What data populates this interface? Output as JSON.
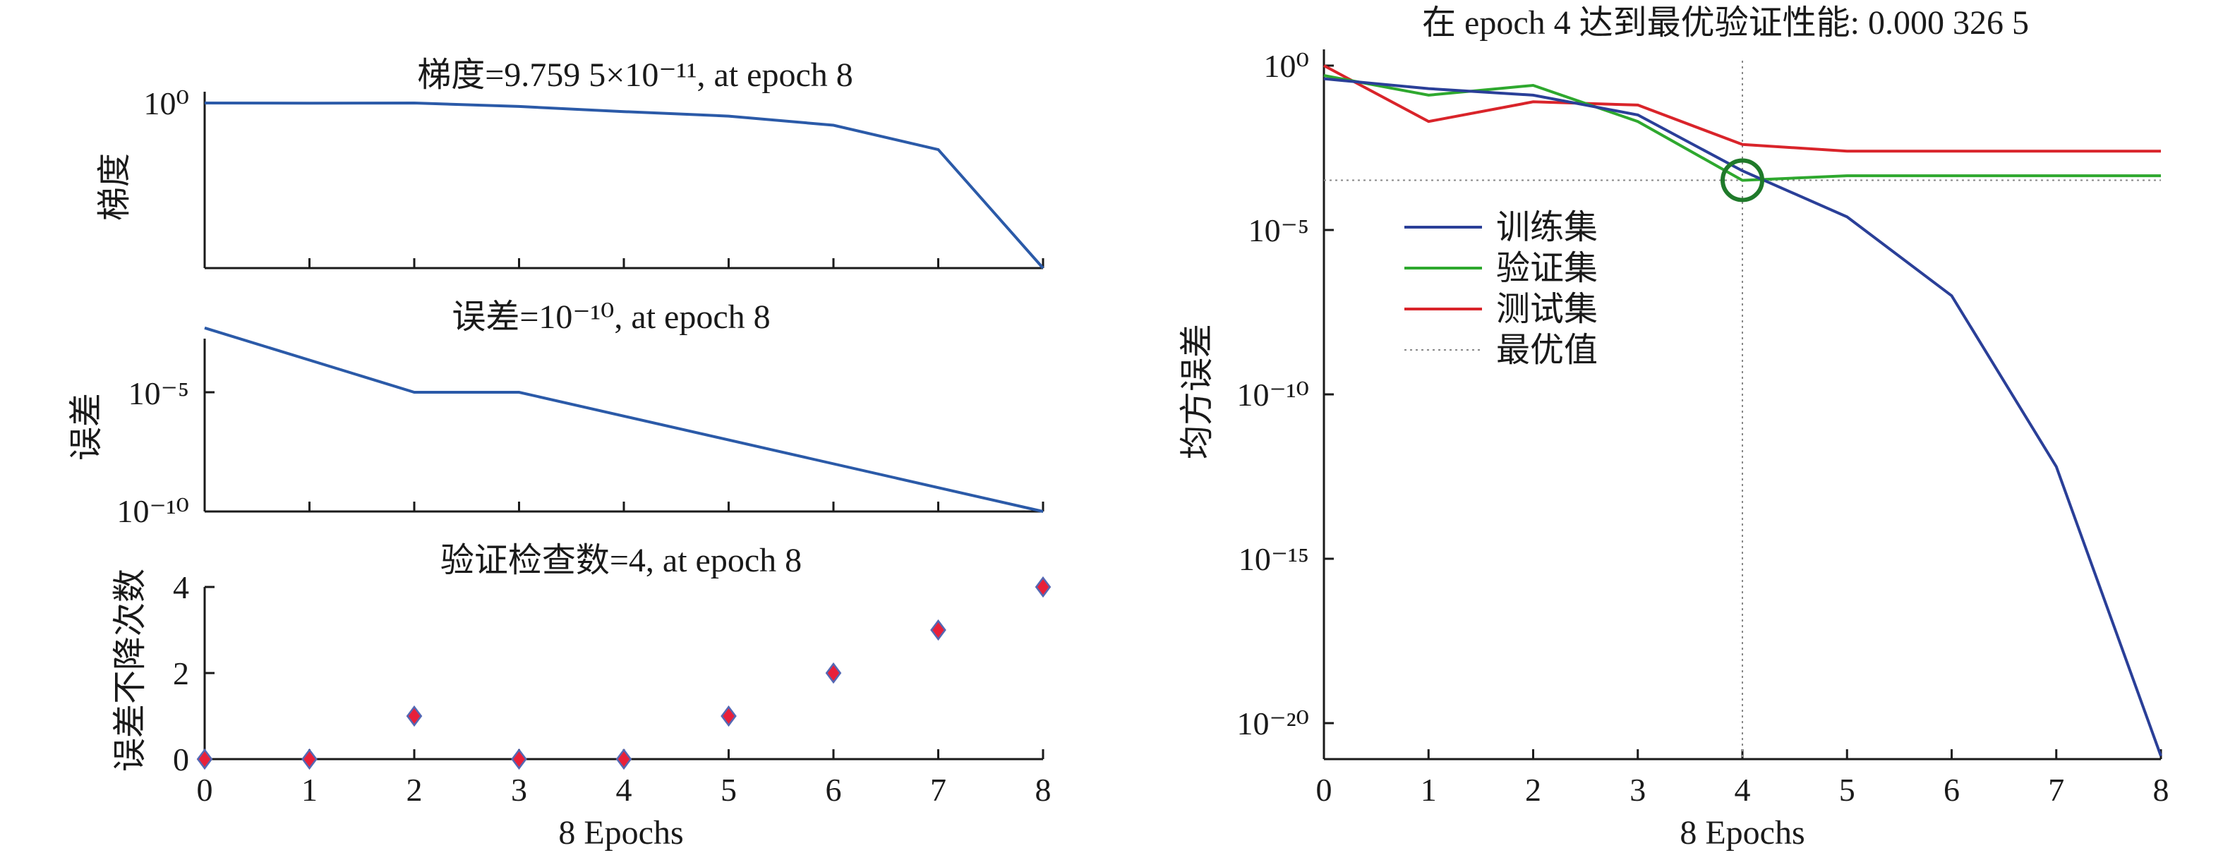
{
  "chart_data": [
    {
      "type": "line",
      "title": "梯度=9.759 5×10⁻¹¹, at epoch 8",
      "ylabel": "梯度",
      "yscale": "log",
      "x": [
        0,
        1,
        2,
        3,
        4,
        5,
        6,
        7,
        8
      ],
      "values": [
        1.0,
        0.97,
        1.0,
        0.62,
        0.3,
        0.16,
        0.045,
        0.0015,
        9.7595e-11
      ],
      "ytick_labels": [
        "10⁰"
      ],
      "color": "#2b5aa8"
    },
    {
      "type": "line",
      "title": "误差=10⁻¹⁰, at epoch 8",
      "ylabel": "误差",
      "yscale": "log",
      "x": [
        0,
        2,
        3,
        8
      ],
      "values": [
        0.005,
        1e-05,
        1e-05,
        1e-10
      ],
      "ytick_labels": [
        "10⁻⁵",
        "10⁻¹⁰"
      ],
      "color": "#2b5aa8"
    },
    {
      "type": "scatter",
      "title": "验证检查数=4, at epoch 8",
      "xlabel": "8 Epochs",
      "ylabel": "误差不降次数",
      "x": [
        0,
        1,
        2,
        3,
        4,
        5,
        6,
        7,
        8
      ],
      "values": [
        0,
        0,
        1,
        0,
        0,
        1,
        2,
        3,
        4
      ],
      "xticks": [
        "0",
        "1",
        "2",
        "3",
        "4",
        "5",
        "6",
        "7",
        "8"
      ],
      "yticks": [
        "0",
        "2",
        "4"
      ],
      "ylim": [
        0,
        4
      ],
      "marker_fill": "#e8203a",
      "marker_edge": "#5468b4"
    },
    {
      "type": "line",
      "title": "在 epoch 4 达到最优验证性能: 0.000 326 5",
      "xlabel": "8 Epochs",
      "ylabel": "均方误差",
      "yscale": "log",
      "xticks": [
        "0",
        "1",
        "2",
        "3",
        "4",
        "5",
        "6",
        "7",
        "8"
      ],
      "ytick_labels": [
        "10⁰",
        "10⁻⁵",
        "10⁻¹⁰",
        "10⁻¹⁵",
        "10⁻²⁰"
      ],
      "ylim_log10": [
        -21,
        0.3
      ],
      "x": [
        0,
        1,
        2,
        3,
        4,
        5,
        6,
        7,
        8
      ],
      "series": [
        {
          "name": "训练集",
          "color": "#2a3f98",
          "log10_values": [
            -0.4,
            -0.7,
            -0.9,
            -1.5,
            -3.2,
            -4.6,
            -7.0,
            -12.2,
            -21.0
          ]
        },
        {
          "name": "验证集",
          "color": "#2ea82e",
          "log10_values": [
            -0.3,
            -0.9,
            -0.6,
            -1.7,
            -3.49,
            -3.35,
            -3.35,
            -3.35,
            -3.35
          ]
        },
        {
          "name": "测试集",
          "color": "#d9242a",
          "log10_values": [
            0.0,
            -1.7,
            -1.1,
            -1.2,
            -2.4,
            -2.6,
            -2.6,
            -2.6,
            -2.6
          ]
        }
      ],
      "best_value_label": "最优值",
      "best": {
        "epoch": 4,
        "value": 0.0003265
      }
    }
  ]
}
